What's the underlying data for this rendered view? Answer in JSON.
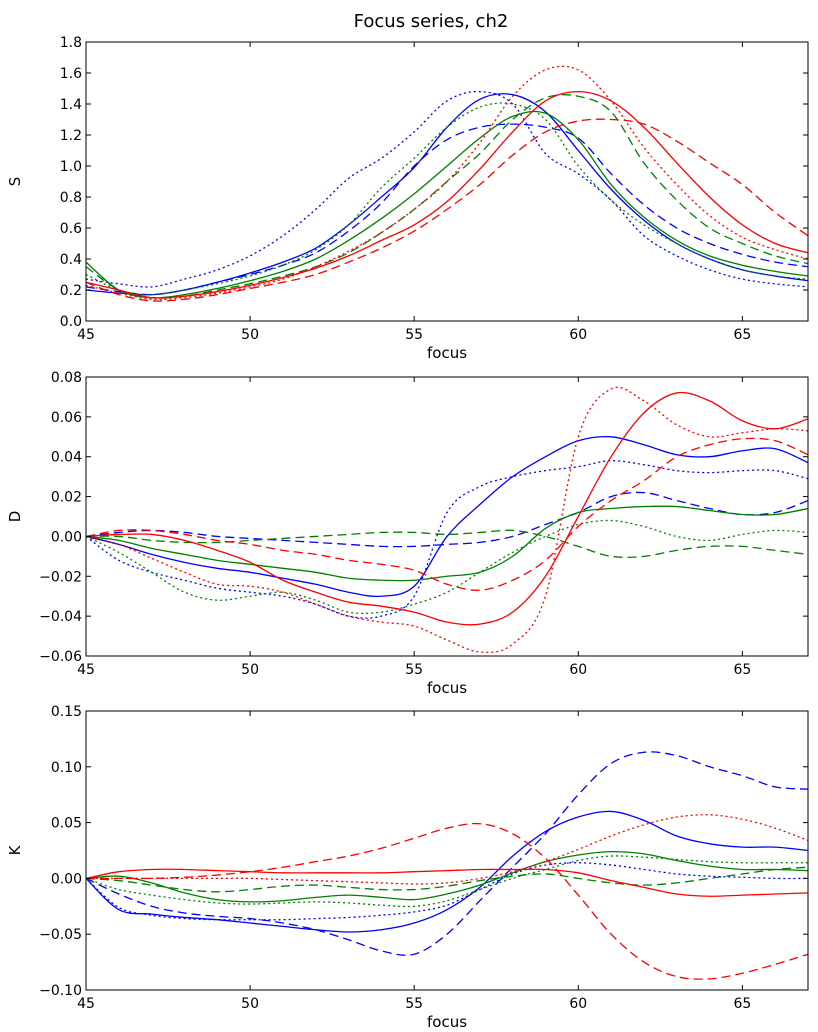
{
  "title": "Focus series, ch2",
  "colors": {
    "blue": "#0000ff",
    "green": "#008000",
    "red": "#ff0000"
  },
  "line_styles": [
    "solid",
    "dashed",
    "dotted"
  ],
  "chart_data": [
    {
      "type": "line",
      "xlabel": "focus",
      "ylabel": "S",
      "xlim": [
        45,
        67
      ],
      "ylim": [
        0.0,
        1.8
      ],
      "xticks": [
        45,
        50,
        55,
        60,
        65
      ],
      "xtick_labels": [
        "45",
        "50",
        "55",
        "60",
        "65"
      ],
      "yticks": [
        0.0,
        0.2,
        0.4,
        0.6,
        0.8,
        1.0,
        1.2,
        1.4,
        1.6,
        1.8
      ],
      "ytick_labels": [
        "0.0",
        "0.2",
        "0.4",
        "0.6",
        "0.8",
        "1.0",
        "1.2",
        "1.4",
        "1.6",
        "1.8"
      ],
      "x": [
        45,
        46,
        47,
        48,
        49,
        50,
        51,
        52,
        53,
        54,
        55,
        56,
        57,
        58,
        59,
        60,
        61,
        62,
        63,
        64,
        65,
        66,
        67
      ],
      "series": [
        {
          "name": "blue-solid",
          "color": "blue",
          "style": "solid",
          "values": [
            0.2,
            0.18,
            0.17,
            0.2,
            0.25,
            0.31,
            0.38,
            0.47,
            0.62,
            0.8,
            0.99,
            1.25,
            1.43,
            1.46,
            1.35,
            1.1,
            0.85,
            0.65,
            0.5,
            0.4,
            0.33,
            0.29,
            0.26
          ]
        },
        {
          "name": "blue-dashed",
          "color": "blue",
          "style": "dashed",
          "values": [
            0.22,
            0.19,
            0.17,
            0.2,
            0.25,
            0.3,
            0.36,
            0.44,
            0.58,
            0.76,
            1.0,
            1.17,
            1.25,
            1.27,
            1.25,
            1.18,
            0.95,
            0.75,
            0.6,
            0.5,
            0.43,
            0.38,
            0.35
          ]
        },
        {
          "name": "blue-dotted",
          "color": "blue",
          "style": "dotted",
          "values": [
            0.27,
            0.24,
            0.22,
            0.27,
            0.33,
            0.42,
            0.55,
            0.72,
            0.92,
            1.05,
            1.22,
            1.42,
            1.48,
            1.4,
            1.08,
            0.95,
            0.78,
            0.55,
            0.42,
            0.33,
            0.27,
            0.24,
            0.22
          ]
        },
        {
          "name": "green-solid",
          "color": "green",
          "style": "solid",
          "values": [
            0.38,
            0.2,
            0.15,
            0.17,
            0.21,
            0.26,
            0.32,
            0.4,
            0.52,
            0.66,
            0.82,
            1.0,
            1.18,
            1.32,
            1.34,
            1.17,
            0.88,
            0.67,
            0.52,
            0.42,
            0.36,
            0.32,
            0.29
          ]
        },
        {
          "name": "green-dashed",
          "color": "green",
          "style": "dashed",
          "values": [
            0.35,
            0.2,
            0.15,
            0.16,
            0.2,
            0.24,
            0.29,
            0.35,
            0.44,
            0.57,
            0.72,
            0.9,
            1.08,
            1.3,
            1.44,
            1.45,
            1.35,
            1.02,
            0.78,
            0.6,
            0.5,
            0.42,
            0.37
          ]
        },
        {
          "name": "green-dotted",
          "color": "green",
          "style": "dotted",
          "values": [
            0.3,
            0.2,
            0.17,
            0.2,
            0.24,
            0.29,
            0.36,
            0.46,
            0.62,
            0.86,
            1.05,
            1.25,
            1.38,
            1.4,
            1.3,
            1.0,
            0.78,
            0.62,
            0.5,
            0.4,
            0.33,
            0.29,
            0.27
          ]
        },
        {
          "name": "red-solid",
          "color": "red",
          "style": "solid",
          "values": [
            0.25,
            0.2,
            0.15,
            0.16,
            0.19,
            0.23,
            0.28,
            0.34,
            0.42,
            0.52,
            0.62,
            0.77,
            0.98,
            1.22,
            1.42,
            1.48,
            1.42,
            1.25,
            1.02,
            0.8,
            0.62,
            0.5,
            0.44
          ]
        },
        {
          "name": "red-dashed",
          "color": "red",
          "style": "dashed",
          "values": [
            0.25,
            0.17,
            0.13,
            0.14,
            0.17,
            0.21,
            0.25,
            0.3,
            0.38,
            0.47,
            0.58,
            0.72,
            0.88,
            1.07,
            1.22,
            1.29,
            1.3,
            1.27,
            1.16,
            1.02,
            0.88,
            0.7,
            0.55
          ]
        },
        {
          "name": "red-dotted",
          "color": "red",
          "style": "dotted",
          "values": [
            0.23,
            0.18,
            0.14,
            0.15,
            0.18,
            0.22,
            0.27,
            0.35,
            0.45,
            0.57,
            0.72,
            0.9,
            1.15,
            1.45,
            1.62,
            1.62,
            1.42,
            1.12,
            0.88,
            0.68,
            0.54,
            0.46,
            0.4
          ]
        }
      ]
    },
    {
      "type": "line",
      "xlabel": "focus",
      "ylabel": "D",
      "xlim": [
        45,
        67
      ],
      "ylim": [
        -0.06,
        0.08
      ],
      "xticks": [
        45,
        50,
        55,
        60,
        65
      ],
      "xtick_labels": [
        "45",
        "50",
        "55",
        "60",
        "65"
      ],
      "yticks": [
        -0.06,
        -0.04,
        -0.02,
        0.0,
        0.02,
        0.04,
        0.06,
        0.08
      ],
      "ytick_labels": [
        "−0.06",
        "−0.04",
        "−0.02",
        "0.00",
        "0.02",
        "0.04",
        "0.06",
        "0.08"
      ],
      "x": [
        45,
        46,
        47,
        48,
        49,
        50,
        51,
        52,
        53,
        54,
        55,
        56,
        57,
        58,
        59,
        60,
        61,
        62,
        63,
        64,
        65,
        66,
        67
      ],
      "series": [
        {
          "name": "blue-solid",
          "color": "blue",
          "style": "solid",
          "values": [
            0.0,
            -0.004,
            -0.009,
            -0.013,
            -0.016,
            -0.018,
            -0.021,
            -0.024,
            -0.028,
            -0.03,
            -0.025,
            0.0,
            0.016,
            0.03,
            0.04,
            0.048,
            0.05,
            0.046,
            0.041,
            0.04,
            0.043,
            0.044,
            0.037
          ]
        },
        {
          "name": "blue-dashed",
          "color": "blue",
          "style": "dashed",
          "values": [
            0.0,
            0.002,
            0.003,
            0.002,
            0.0,
            -0.001,
            -0.002,
            -0.003,
            -0.004,
            -0.005,
            -0.005,
            -0.004,
            -0.003,
            0.0,
            0.006,
            0.012,
            0.02,
            0.022,
            0.018,
            0.014,
            0.011,
            0.012,
            0.018
          ]
        },
        {
          "name": "blue-dotted",
          "color": "blue",
          "style": "dotted",
          "values": [
            0.0,
            -0.012,
            -0.018,
            -0.022,
            -0.026,
            -0.028,
            -0.03,
            -0.034,
            -0.04,
            -0.04,
            -0.03,
            0.012,
            0.025,
            0.03,
            0.033,
            0.035,
            0.038,
            0.036,
            0.033,
            0.032,
            0.033,
            0.033,
            0.029
          ]
        },
        {
          "name": "green-solid",
          "color": "green",
          "style": "solid",
          "values": [
            0.0,
            -0.002,
            -0.006,
            -0.009,
            -0.012,
            -0.014,
            -0.016,
            -0.018,
            -0.021,
            -0.022,
            -0.022,
            -0.02,
            -0.018,
            -0.01,
            0.004,
            0.012,
            0.014,
            0.015,
            0.015,
            0.013,
            0.011,
            0.011,
            0.014
          ]
        },
        {
          "name": "green-dashed",
          "color": "green",
          "style": "dashed",
          "values": [
            0.0,
            0.0,
            -0.002,
            -0.003,
            -0.003,
            -0.002,
            -0.001,
            0.0,
            0.001,
            0.002,
            0.002,
            0.001,
            0.002,
            0.003,
            0.0,
            -0.005,
            -0.01,
            -0.01,
            -0.007,
            -0.005,
            -0.005,
            -0.007,
            -0.009
          ]
        },
        {
          "name": "green-dotted",
          "color": "green",
          "style": "dotted",
          "values": [
            0.0,
            -0.008,
            -0.018,
            -0.028,
            -0.032,
            -0.03,
            -0.028,
            -0.032,
            -0.038,
            -0.038,
            -0.034,
            -0.028,
            -0.018,
            -0.008,
            0.0,
            0.006,
            0.008,
            0.005,
            0.0,
            -0.002,
            0.001,
            0.003,
            0.002
          ]
        },
        {
          "name": "red-solid",
          "color": "red",
          "style": "solid",
          "values": [
            0.0,
            0.001,
            0.001,
            -0.002,
            -0.007,
            -0.013,
            -0.022,
            -0.028,
            -0.033,
            -0.035,
            -0.038,
            -0.043,
            -0.044,
            -0.038,
            -0.02,
            0.01,
            0.04,
            0.062,
            0.072,
            0.068,
            0.058,
            0.054,
            0.059
          ]
        },
        {
          "name": "red-dashed",
          "color": "red",
          "style": "dashed",
          "values": [
            0.0,
            0.003,
            0.003,
            0.001,
            -0.002,
            -0.004,
            -0.007,
            -0.009,
            -0.012,
            -0.014,
            -0.017,
            -0.024,
            -0.027,
            -0.022,
            -0.012,
            0.005,
            0.018,
            0.028,
            0.04,
            0.046,
            0.049,
            0.048,
            0.041
          ]
        },
        {
          "name": "red-dotted",
          "color": "red",
          "style": "dotted",
          "values": [
            0.0,
            -0.004,
            -0.011,
            -0.018,
            -0.024,
            -0.025,
            -0.028,
            -0.034,
            -0.04,
            -0.043,
            -0.045,
            -0.052,
            -0.058,
            -0.054,
            -0.03,
            0.05,
            0.074,
            0.068,
            0.056,
            0.05,
            0.052,
            0.054,
            0.053
          ]
        }
      ]
    },
    {
      "type": "line",
      "xlabel": "focus",
      "ylabel": "K",
      "xlim": [
        45,
        67
      ],
      "ylim": [
        -0.1,
        0.15
      ],
      "xticks": [
        45,
        50,
        55,
        60,
        65
      ],
      "xtick_labels": [
        "45",
        "50",
        "55",
        "60",
        "65"
      ],
      "yticks": [
        -0.1,
        -0.05,
        0.0,
        0.05,
        0.1,
        0.15
      ],
      "ytick_labels": [
        "−0.10",
        "−0.05",
        "0.00",
        "0.05",
        "0.10",
        "0.15"
      ],
      "x": [
        45,
        46,
        47,
        48,
        49,
        50,
        51,
        52,
        53,
        54,
        55,
        56,
        57,
        58,
        59,
        60,
        61,
        62,
        63,
        64,
        65,
        66,
        67
      ],
      "series": [
        {
          "name": "blue-solid",
          "color": "blue",
          "style": "solid",
          "values": [
            0.0,
            -0.028,
            -0.032,
            -0.035,
            -0.037,
            -0.04,
            -0.043,
            -0.046,
            -0.048,
            -0.046,
            -0.04,
            -0.028,
            -0.008,
            0.02,
            0.042,
            0.055,
            0.06,
            0.052,
            0.038,
            0.031,
            0.028,
            0.028,
            0.025
          ]
        },
        {
          "name": "blue-dashed",
          "color": "blue",
          "style": "dashed",
          "values": [
            0.0,
            -0.014,
            -0.025,
            -0.031,
            -0.034,
            -0.036,
            -0.04,
            -0.046,
            -0.055,
            -0.065,
            -0.068,
            -0.05,
            -0.02,
            0.01,
            0.04,
            0.075,
            0.103,
            0.113,
            0.11,
            0.1,
            0.092,
            0.082,
            0.08
          ]
        },
        {
          "name": "blue-dotted",
          "color": "blue",
          "style": "dotted",
          "values": [
            0.0,
            -0.026,
            -0.033,
            -0.036,
            -0.037,
            -0.037,
            -0.037,
            -0.036,
            -0.035,
            -0.033,
            -0.03,
            -0.024,
            -0.01,
            0.004,
            0.012,
            0.014,
            0.012,
            0.008,
            0.004,
            0.002,
            0.001,
            0.0,
            0.0
          ]
        },
        {
          "name": "green-solid",
          "color": "green",
          "style": "solid",
          "values": [
            0.0,
            0.002,
            -0.004,
            -0.013,
            -0.019,
            -0.021,
            -0.02,
            -0.017,
            -0.015,
            -0.017,
            -0.019,
            -0.014,
            -0.006,
            0.005,
            0.015,
            0.021,
            0.024,
            0.022,
            0.016,
            0.011,
            0.008,
            0.008,
            0.007
          ]
        },
        {
          "name": "green-dashed",
          "color": "green",
          "style": "dashed",
          "values": [
            0.0,
            -0.002,
            -0.006,
            -0.01,
            -0.012,
            -0.01,
            -0.007,
            -0.006,
            -0.008,
            -0.01,
            -0.01,
            -0.007,
            -0.002,
            0.002,
            0.004,
            0.0,
            -0.004,
            -0.006,
            -0.004,
            0.0,
            0.004,
            0.008,
            0.01
          ]
        },
        {
          "name": "green-dotted",
          "color": "green",
          "style": "dotted",
          "values": [
            0.0,
            -0.01,
            -0.015,
            -0.019,
            -0.022,
            -0.023,
            -0.022,
            -0.021,
            -0.022,
            -0.024,
            -0.025,
            -0.02,
            -0.01,
            0.0,
            0.008,
            0.016,
            0.02,
            0.019,
            0.017,
            0.015,
            0.014,
            0.014,
            0.014
          ]
        },
        {
          "name": "red-solid",
          "color": "red",
          "style": "solid",
          "values": [
            0.0,
            0.006,
            0.008,
            0.008,
            0.007,
            0.006,
            0.005,
            0.005,
            0.005,
            0.005,
            0.006,
            0.007,
            0.008,
            0.008,
            0.008,
            0.005,
            -0.002,
            -0.008,
            -0.014,
            -0.016,
            -0.015,
            -0.014,
            -0.013
          ]
        },
        {
          "name": "red-dashed",
          "color": "red",
          "style": "dashed",
          "values": [
            0.0,
            0.0,
            0.0,
            0.001,
            0.003,
            0.006,
            0.01,
            0.015,
            0.02,
            0.027,
            0.036,
            0.045,
            0.049,
            0.04,
            0.018,
            -0.015,
            -0.05,
            -0.075,
            -0.088,
            -0.09,
            -0.085,
            -0.077,
            -0.068
          ]
        },
        {
          "name": "red-dotted",
          "color": "red",
          "style": "dotted",
          "values": [
            0.0,
            0.0,
            0.0,
            0.0,
            0.0,
            0.0,
            -0.001,
            -0.002,
            -0.003,
            -0.004,
            -0.005,
            -0.004,
            0.0,
            0.006,
            0.015,
            0.026,
            0.038,
            0.048,
            0.055,
            0.057,
            0.053,
            0.045,
            0.034
          ]
        }
      ]
    }
  ]
}
